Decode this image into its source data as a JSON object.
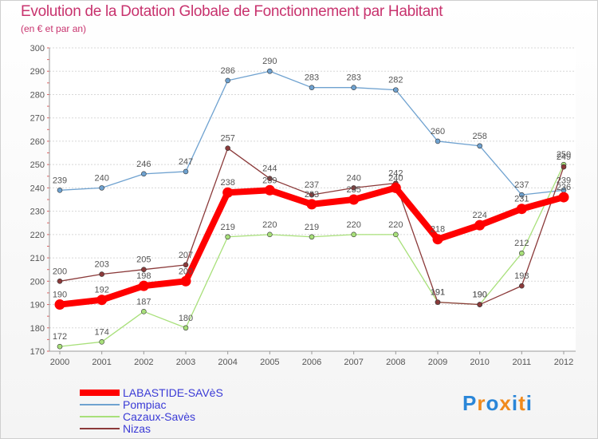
{
  "chart_data": {
    "type": "line",
    "title": "Evolution de la Dotation Globale de Fonctionnement par Habitant",
    "subtitle": "(en € et par an)",
    "xlabel": "",
    "ylabel": "",
    "ylim": [
      170,
      300
    ],
    "yticks": [
      170,
      180,
      190,
      200,
      210,
      220,
      230,
      240,
      250,
      260,
      270,
      280,
      290,
      300
    ],
    "grid": "horizontal dashed",
    "categories": [
      "2000",
      "2001",
      "2002",
      "2003",
      "2004",
      "2005",
      "2006",
      "2007",
      "2008",
      "2009",
      "2010",
      "2011",
      "2012"
    ],
    "series": [
      {
        "name": "LABASTIDE-SAVèS",
        "color": "#ff0000",
        "values": [
          190,
          192,
          198,
          200,
          238,
          239,
          233,
          235,
          240,
          218,
          224,
          231,
          236
        ],
        "width": "thick"
      },
      {
        "name": "Pompiac",
        "color": "#6fa2d0",
        "values": [
          239,
          240,
          246,
          247,
          286,
          290,
          283,
          283,
          282,
          260,
          258,
          237,
          239
        ],
        "width": "thin"
      },
      {
        "name": "Cazaux-Savès",
        "color": "#a8e07a",
        "values": [
          172,
          174,
          187,
          180,
          219,
          220,
          219,
          220,
          220,
          191,
          190,
          212,
          250
        ],
        "width": "thin"
      },
      {
        "name": "Nizas",
        "color": "#8b3a3a",
        "values": [
          200,
          203,
          205,
          207,
          257,
          244,
          237,
          240,
          242,
          191,
          190,
          198,
          249
        ],
        "width": "thin"
      }
    ]
  },
  "brand": {
    "letters": [
      "P",
      "r",
      "o",
      "x",
      "i",
      "t",
      "i"
    ],
    "colors": [
      "#2a86d8",
      "#f08a1c",
      "#2a86d8",
      "#f08a1c",
      "#2a86d8",
      "#f08a1c",
      "#2a86d8"
    ]
  }
}
